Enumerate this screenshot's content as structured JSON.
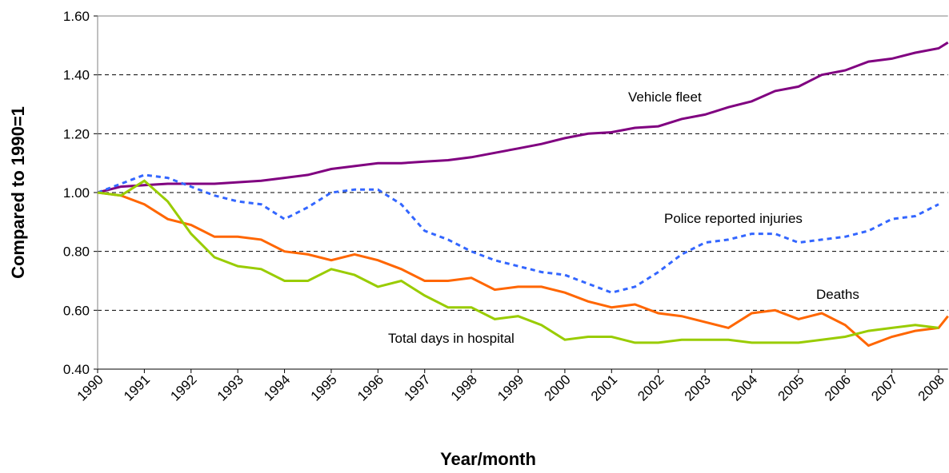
{
  "chart_data": {
    "type": "line",
    "x_label": "Year/month",
    "y_label": "Compared to 1990=1",
    "x": [
      1990,
      1990.5,
      1991,
      1991.5,
      1992,
      1992.5,
      1993,
      1993.5,
      1994,
      1994.5,
      1995,
      1995.5,
      1996,
      1996.5,
      1997,
      1997.5,
      1998,
      1998.5,
      1999,
      1999.5,
      2000,
      2000.5,
      2001,
      2001.5,
      2002,
      2002.5,
      2003,
      2003.5,
      2004,
      2004.5,
      2005,
      2005.5,
      2006,
      2006.5,
      2007,
      2007.5,
      2008,
      2008.2
    ],
    "xlim": [
      1990,
      2008.2
    ],
    "xticks": [
      1990,
      1991,
      1992,
      1993,
      1994,
      1995,
      1996,
      1997,
      1998,
      1999,
      2000,
      2001,
      2002,
      2003,
      2004,
      2005,
      2006,
      2007,
      2008
    ],
    "ylim": [
      0.4,
      1.6
    ],
    "yticks": [
      {
        "value": 0.4,
        "label": "0.40"
      },
      {
        "value": 0.6,
        "label": "0.60"
      },
      {
        "value": 0.8,
        "label": "0.80"
      },
      {
        "value": 1.0,
        "label": "1.00"
      },
      {
        "value": 1.2,
        "label": "1.20"
      },
      {
        "value": 1.4,
        "label": "1.40"
      },
      {
        "value": 1.6,
        "label": "1.60"
      }
    ],
    "grid": true,
    "series": [
      {
        "name": "Vehicle fleet",
        "color": "#800080",
        "dash": false,
        "values": [
          1.0,
          1.02,
          1.025,
          1.03,
          1.03,
          1.03,
          1.035,
          1.04,
          1.05,
          1.06,
          1.08,
          1.09,
          1.1,
          1.1,
          1.105,
          1.11,
          1.12,
          1.135,
          1.15,
          1.165,
          1.185,
          1.2,
          1.205,
          1.22,
          1.225,
          1.25,
          1.265,
          1.29,
          1.31,
          1.345,
          1.36,
          1.4,
          1.415,
          1.445,
          1.455,
          1.475,
          1.49,
          1.51
        ]
      },
      {
        "name": "Police reported injuries",
        "color": "#3366ff",
        "dash": true,
        "values": [
          1.0,
          1.03,
          1.06,
          1.05,
          1.02,
          0.99,
          0.97,
          0.96,
          0.91,
          0.95,
          1.0,
          1.01,
          1.01,
          0.96,
          0.87,
          0.84,
          0.8,
          0.77,
          0.75,
          0.73,
          0.72,
          0.69,
          0.66,
          0.68,
          0.73,
          0.79,
          0.83,
          0.84,
          0.86,
          0.86,
          0.83,
          0.84,
          0.85,
          0.87,
          0.91,
          0.92,
          0.96,
          null
        ]
      },
      {
        "name": "Deaths",
        "color": "#ff6600",
        "dash": false,
        "values": [
          1.0,
          0.99,
          0.96,
          0.91,
          0.89,
          0.85,
          0.85,
          0.84,
          0.8,
          0.79,
          0.77,
          0.79,
          0.77,
          0.74,
          0.7,
          0.7,
          0.71,
          0.67,
          0.68,
          0.68,
          0.66,
          0.63,
          0.61,
          0.62,
          0.59,
          0.58,
          0.56,
          0.54,
          0.59,
          0.6,
          0.57,
          0.59,
          0.55,
          0.48,
          0.51,
          0.53,
          0.54,
          0.58
        ]
      },
      {
        "name": "Total days in hospital",
        "color": "#99cc00",
        "dash": false,
        "values": [
          1.0,
          0.99,
          1.04,
          0.97,
          0.86,
          0.78,
          0.75,
          0.74,
          0.7,
          0.7,
          0.74,
          0.72,
          0.68,
          0.7,
          0.65,
          0.61,
          0.61,
          0.57,
          0.58,
          0.55,
          0.5,
          0.51,
          0.51,
          0.49,
          0.49,
          0.5,
          0.5,
          0.5,
          0.49,
          0.49,
          0.49,
          0.5,
          0.51,
          0.53,
          0.54,
          0.55,
          0.54,
          null
        ]
      }
    ]
  }
}
